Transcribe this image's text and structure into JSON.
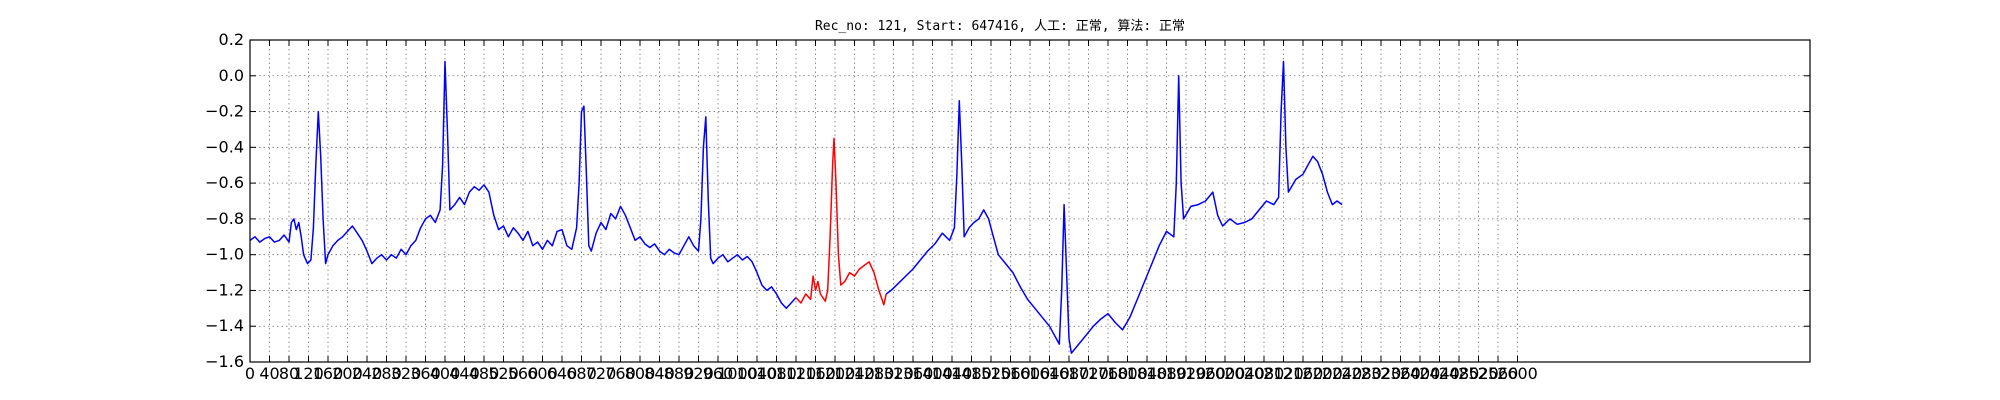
{
  "chart_data": {
    "type": "line",
    "title": "Rec_no: 121, Start: 647416, 人工: 正常, 算法: 正常",
    "xlabel": "",
    "ylabel": "",
    "xlim": [
      0,
      3200
    ],
    "ylim": [
      -1.6,
      0.2
    ],
    "grid": true,
    "legend": "none",
    "y_ticks": [
      0.2,
      0.0,
      -0.2,
      -0.4,
      -0.6,
      -0.8,
      -1.0,
      -1.2,
      -1.4,
      -1.6
    ],
    "y_tick_labels": [
      "0.2",
      "0.0",
      "−0.2",
      "−0.4",
      "−0.6",
      "−0.8",
      "−1.0",
      "−1.2",
      "−1.4",
      "−1.6"
    ],
    "x_ticks": [
      0,
      40,
      80,
      120,
      160,
      200,
      240,
      280,
      320,
      360,
      400,
      440,
      480,
      520,
      560,
      600,
      640,
      680,
      720,
      760,
      800,
      840,
      880,
      920,
      960,
      1000,
      1040,
      1080,
      1120,
      1160,
      1200,
      1240,
      1280,
      1320,
      1360,
      1400,
      1440,
      1480,
      1520,
      1560,
      1600,
      1640,
      1680,
      1720,
      1760,
      1800,
      1840,
      1880,
      1920,
      1960,
      2000,
      2040,
      2080,
      2120,
      2160,
      2200,
      2240,
      2280,
      2320,
      2360,
      2400,
      2440,
      2480,
      2520,
      2560,
      2600
    ],
    "x_tick_labels": [
      "0",
      "40",
      "80",
      "120",
      "160",
      "200",
      "240",
      "280",
      "320",
      "360",
      "400",
      "440",
      "480",
      "520",
      "560",
      "600",
      "640",
      "680",
      "720",
      "760",
      "800",
      "840",
      "880",
      "920",
      "960",
      "1000",
      "1040",
      "1080",
      "1120",
      "1160",
      "1200",
      "1240",
      "1280",
      "1320",
      "1360",
      "1400",
      "1440",
      "1480",
      "1520",
      "1560",
      "1600",
      "1640",
      "1680",
      "1720",
      "1760",
      "1800",
      "1840",
      "1880",
      "1920",
      "1960",
      "2000",
      "2040",
      "2080",
      "2120",
      "2160",
      "2200",
      "2240",
      "2280",
      "2320",
      "2360",
      "2400",
      "2440",
      "2480",
      "2520",
      "2560",
      "2600"
    ],
    "series": [
      {
        "color": "#0000ff",
        "points": [
          [
            0,
            -0.92
          ],
          [
            10,
            -0.9
          ],
          [
            20,
            -0.93
          ],
          [
            30,
            -0.91
          ],
          [
            40,
            -0.9
          ],
          [
            50,
            -0.93
          ],
          [
            60,
            -0.92
          ],
          [
            70,
            -0.89
          ],
          [
            80,
            -0.93
          ],
          [
            85,
            -0.82
          ],
          [
            90,
            -0.8
          ],
          [
            95,
            -0.86
          ],
          [
            100,
            -0.82
          ],
          [
            105,
            -0.9
          ],
          [
            110,
            -1.0
          ],
          [
            118,
            -1.05
          ],
          [
            125,
            -1.03
          ],
          [
            130,
            -0.85
          ],
          [
            135,
            -0.5
          ],
          [
            140,
            -0.2
          ],
          [
            145,
            -0.45
          ],
          [
            150,
            -0.8
          ],
          [
            155,
            -1.05
          ],
          [
            160,
            -1.0
          ],
          [
            170,
            -0.95
          ],
          [
            180,
            -0.92
          ],
          [
            190,
            -0.9
          ],
          [
            200,
            -0.87
          ],
          [
            210,
            -0.84
          ],
          [
            220,
            -0.88
          ],
          [
            230,
            -0.92
          ],
          [
            240,
            -0.98
          ],
          [
            250,
            -1.05
          ],
          [
            260,
            -1.02
          ],
          [
            270,
            -1.0
          ],
          [
            280,
            -1.03
          ],
          [
            290,
            -1.0
          ],
          [
            300,
            -1.02
          ],
          [
            310,
            -0.97
          ],
          [
            320,
            -1.0
          ],
          [
            330,
            -0.95
          ],
          [
            340,
            -0.92
          ],
          [
            350,
            -0.85
          ],
          [
            360,
            -0.8
          ],
          [
            370,
            -0.78
          ],
          [
            380,
            -0.82
          ],
          [
            390,
            -0.75
          ],
          [
            395,
            -0.5
          ],
          [
            400,
            0.08
          ],
          [
            405,
            -0.3
          ],
          [
            410,
            -0.75
          ],
          [
            420,
            -0.72
          ],
          [
            430,
            -0.68
          ],
          [
            440,
            -0.72
          ],
          [
            450,
            -0.65
          ],
          [
            460,
            -0.62
          ],
          [
            470,
            -0.64
          ],
          [
            480,
            -0.61
          ],
          [
            490,
            -0.65
          ],
          [
            500,
            -0.78
          ],
          [
            510,
            -0.86
          ],
          [
            520,
            -0.84
          ],
          [
            530,
            -0.9
          ],
          [
            540,
            -0.85
          ],
          [
            550,
            -0.88
          ],
          [
            560,
            -0.92
          ],
          [
            570,
            -0.87
          ],
          [
            580,
            -0.95
          ],
          [
            590,
            -0.93
          ],
          [
            600,
            -0.97
          ],
          [
            610,
            -0.92
          ],
          [
            620,
            -0.95
          ],
          [
            630,
            -0.87
          ],
          [
            640,
            -0.86
          ],
          [
            650,
            -0.95
          ],
          [
            660,
            -0.97
          ],
          [
            670,
            -0.85
          ],
          [
            675,
            -0.6
          ],
          [
            680,
            -0.2
          ],
          [
            685,
            -0.17
          ],
          [
            690,
            -0.55
          ],
          [
            695,
            -0.95
          ],
          [
            700,
            -0.98
          ],
          [
            710,
            -0.88
          ],
          [
            720,
            -0.82
          ],
          [
            730,
            -0.86
          ],
          [
            740,
            -0.77
          ],
          [
            750,
            -0.8
          ],
          [
            760,
            -0.73
          ],
          [
            770,
            -0.78
          ],
          [
            780,
            -0.85
          ],
          [
            790,
            -0.92
          ],
          [
            800,
            -0.9
          ],
          [
            810,
            -0.94
          ],
          [
            820,
            -0.96
          ],
          [
            830,
            -0.94
          ],
          [
            840,
            -0.98
          ],
          [
            850,
            -1.0
          ],
          [
            860,
            -0.97
          ],
          [
            870,
            -0.99
          ],
          [
            880,
            -1.0
          ],
          [
            890,
            -0.95
          ],
          [
            900,
            -0.9
          ],
          [
            910,
            -0.95
          ],
          [
            920,
            -0.98
          ],
          [
            925,
            -0.8
          ],
          [
            930,
            -0.4
          ],
          [
            935,
            -0.23
          ],
          [
            940,
            -0.7
          ],
          [
            945,
            -1.02
          ],
          [
            950,
            -1.05
          ],
          [
            960,
            -1.02
          ],
          [
            970,
            -1.0
          ],
          [
            980,
            -1.04
          ],
          [
            990,
            -1.02
          ],
          [
            1000,
            -1.0
          ],
          [
            1010,
            -1.03
          ],
          [
            1020,
            -1.01
          ],
          [
            1030,
            -1.04
          ],
          [
            1040,
            -1.1
          ],
          [
            1050,
            -1.17
          ],
          [
            1060,
            -1.2
          ],
          [
            1070,
            -1.18
          ],
          [
            1080,
            -1.22
          ],
          [
            1090,
            -1.27
          ],
          [
            1100,
            -1.3
          ],
          [
            1110,
            -1.27
          ],
          [
            1120,
            -1.24
          ]
        ]
      },
      {
        "color": "#ff0000",
        "points": [
          [
            1120,
            -1.24
          ],
          [
            1130,
            -1.27
          ],
          [
            1140,
            -1.22
          ],
          [
            1150,
            -1.25
          ],
          [
            1155,
            -1.12
          ],
          [
            1160,
            -1.2
          ],
          [
            1165,
            -1.15
          ],
          [
            1170,
            -1.22
          ],
          [
            1180,
            -1.26
          ],
          [
            1185,
            -1.2
          ],
          [
            1190,
            -0.9
          ],
          [
            1195,
            -0.5
          ],
          [
            1198,
            -0.35
          ],
          [
            1202,
            -0.6
          ],
          [
            1207,
            -1.0
          ],
          [
            1212,
            -1.17
          ],
          [
            1220,
            -1.15
          ],
          [
            1230,
            -1.1
          ],
          [
            1240,
            -1.12
          ],
          [
            1250,
            -1.08
          ],
          [
            1260,
            -1.06
          ],
          [
            1270,
            -1.04
          ],
          [
            1280,
            -1.1
          ],
          [
            1290,
            -1.2
          ],
          [
            1300,
            -1.28
          ],
          [
            1305,
            -1.22
          ]
        ]
      },
      {
        "color": "#0000ff",
        "points": [
          [
            1305,
            -1.22
          ],
          [
            1315,
            -1.2
          ],
          [
            1330,
            -1.16
          ],
          [
            1345,
            -1.12
          ],
          [
            1360,
            -1.08
          ],
          [
            1375,
            -1.03
          ],
          [
            1390,
            -0.98
          ],
          [
            1405,
            -0.94
          ],
          [
            1420,
            -0.88
          ],
          [
            1435,
            -0.92
          ],
          [
            1445,
            -0.85
          ],
          [
            1450,
            -0.55
          ],
          [
            1455,
            -0.14
          ],
          [
            1460,
            -0.5
          ],
          [
            1465,
            -0.9
          ],
          [
            1475,
            -0.85
          ],
          [
            1485,
            -0.82
          ],
          [
            1495,
            -0.8
          ],
          [
            1505,
            -0.75
          ],
          [
            1515,
            -0.8
          ],
          [
            1525,
            -0.9
          ],
          [
            1535,
            -1.0
          ],
          [
            1550,
            -1.05
          ],
          [
            1565,
            -1.1
          ],
          [
            1580,
            -1.18
          ],
          [
            1595,
            -1.25
          ],
          [
            1610,
            -1.3
          ],
          [
            1625,
            -1.35
          ],
          [
            1640,
            -1.4
          ],
          [
            1650,
            -1.45
          ],
          [
            1660,
            -1.5
          ],
          [
            1665,
            -1.2
          ],
          [
            1670,
            -0.72
          ],
          [
            1675,
            -1.1
          ],
          [
            1680,
            -1.47
          ],
          [
            1685,
            -1.55
          ],
          [
            1700,
            -1.5
          ],
          [
            1715,
            -1.45
          ],
          [
            1730,
            -1.4
          ],
          [
            1745,
            -1.36
          ],
          [
            1760,
            -1.33
          ],
          [
            1775,
            -1.38
          ],
          [
            1790,
            -1.42
          ],
          [
            1805,
            -1.35
          ],
          [
            1820,
            -1.25
          ],
          [
            1835,
            -1.15
          ],
          [
            1850,
            -1.05
          ],
          [
            1865,
            -0.95
          ],
          [
            1880,
            -0.87
          ],
          [
            1895,
            -0.9
          ],
          [
            1900,
            -0.6
          ],
          [
            1905,
            0.0
          ],
          [
            1910,
            -0.6
          ],
          [
            1915,
            -0.8
          ],
          [
            1930,
            -0.73
          ],
          [
            1945,
            -0.72
          ],
          [
            1960,
            -0.7
          ],
          [
            1975,
            -0.65
          ],
          [
            1985,
            -0.78
          ],
          [
            1995,
            -0.84
          ],
          [
            2010,
            -0.8
          ],
          [
            2025,
            -0.83
          ],
          [
            2040,
            -0.82
          ],
          [
            2055,
            -0.8
          ],
          [
            2070,
            -0.75
          ],
          [
            2085,
            -0.7
          ],
          [
            2100,
            -0.72
          ],
          [
            2110,
            -0.68
          ],
          [
            2115,
            -0.2
          ],
          [
            2120,
            0.08
          ],
          [
            2125,
            -0.4
          ],
          [
            2130,
            -0.65
          ],
          [
            2145,
            -0.58
          ],
          [
            2160,
            -0.55
          ],
          [
            2170,
            -0.5
          ],
          [
            2180,
            -0.45
          ],
          [
            2190,
            -0.48
          ],
          [
            2200,
            -0.55
          ],
          [
            2210,
            -0.65
          ],
          [
            2220,
            -0.72
          ],
          [
            2230,
            -0.7
          ],
          [
            2240,
            -0.72
          ]
        ]
      }
    ]
  }
}
